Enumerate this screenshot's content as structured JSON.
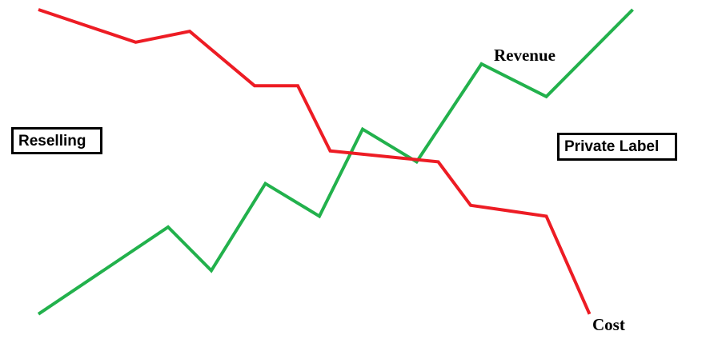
{
  "chart_data": {
    "type": "line",
    "colors": {
      "revenue": "#22b14c",
      "cost": "#ed1c24",
      "box_border": "#000000"
    },
    "annotations": {
      "left_box": "Reselling",
      "right_box": "Private Label"
    },
    "series": [
      {
        "name": "Revenue",
        "color": "#22b14c",
        "points": [
          [
            0,
            2
          ],
          [
            12,
            10
          ],
          [
            16,
            6
          ],
          [
            21,
            14
          ],
          [
            26,
            11
          ],
          [
            30,
            19
          ],
          [
            35,
            16
          ],
          [
            41,
            25
          ],
          [
            47,
            22
          ],
          [
            55,
            30
          ]
        ]
      },
      {
        "name": "Cost",
        "color": "#ed1c24",
        "points": [
          [
            0,
            30
          ],
          [
            9,
            27
          ],
          [
            14,
            28
          ],
          [
            20,
            23
          ],
          [
            24,
            23
          ],
          [
            27,
            17
          ],
          [
            37,
            16
          ],
          [
            40,
            12
          ],
          [
            47,
            11
          ],
          [
            51,
            2
          ]
        ]
      }
    ]
  }
}
